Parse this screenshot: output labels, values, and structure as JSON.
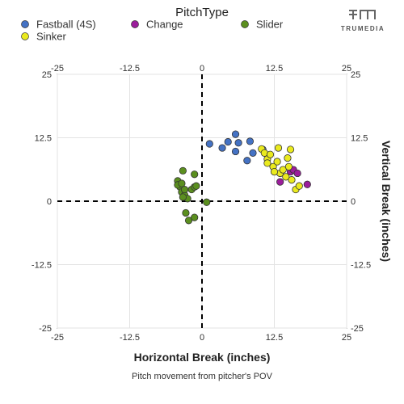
{
  "brand": {
    "name": "TRUMEDIA",
    "logo_icon": "tm-logo-icon"
  },
  "chart_data": {
    "type": "scatter",
    "legend": {
      "title": "PitchType",
      "placement": "top"
    },
    "xlabel": "Horizontal Break (inches)",
    "ylabel": "Vertical Break (inches)",
    "caption": "Pitch movement from pitcher's POV",
    "xlim": [
      -25,
      25
    ],
    "ylim": [
      -25,
      25
    ],
    "xticks": [
      -25,
      -12.5,
      0,
      12.5,
      25
    ],
    "yticks": [
      -25,
      -12.5,
      0,
      12.5,
      25
    ],
    "tick_labels": [
      "-25",
      "-12.5",
      "0",
      "12.5",
      "25"
    ],
    "grid": true,
    "zero_lines": "dashed",
    "series": [
      {
        "name": "Fastball (4S)",
        "color": "#4472c4",
        "points": [
          [
            1.3,
            11.3
          ],
          [
            3.5,
            10.5
          ],
          [
            4.5,
            11.7
          ],
          [
            5.8,
            13.2
          ],
          [
            6.3,
            11.5
          ],
          [
            5.8,
            9.8
          ],
          [
            8.3,
            11.8
          ],
          [
            7.8,
            8.0
          ],
          [
            8.8,
            9.5
          ],
          [
            10.5,
            10.2
          ]
        ]
      },
      {
        "name": "Change",
        "color": "#9b1d9b",
        "points": [
          [
            13.5,
            3.8
          ],
          [
            15.3,
            5.8
          ],
          [
            15.8,
            6.2
          ],
          [
            16.5,
            5.5
          ],
          [
            18.2,
            3.3
          ]
        ]
      },
      {
        "name": "Slider",
        "color": "#5b8f1f",
        "points": [
          [
            -4.2,
            4.0
          ],
          [
            -3.8,
            2.8
          ],
          [
            -3.3,
            6.0
          ],
          [
            -4.2,
            3.2
          ],
          [
            -3.5,
            1.8
          ],
          [
            -3.0,
            1.2
          ],
          [
            -2.5,
            0.5
          ],
          [
            -2.8,
            -2.3
          ],
          [
            -2.3,
            -3.8
          ],
          [
            -1.3,
            -3.2
          ],
          [
            -1.8,
            2.3
          ],
          [
            -1.3,
            2.8
          ],
          [
            -1.0,
            3.0
          ],
          [
            -1.3,
            5.3
          ],
          [
            -3.0,
            2.3
          ],
          [
            -3.5,
            3.5
          ],
          [
            0.8,
            -0.2
          ],
          [
            -3.3,
            0.8
          ]
        ]
      },
      {
        "name": "Sinker",
        "color": "#eaea1e",
        "points": [
          [
            10.3,
            10.3
          ],
          [
            10.8,
            9.5
          ],
          [
            11.3,
            8.3
          ],
          [
            11.8,
            9.2
          ],
          [
            11.3,
            7.5
          ],
          [
            12.3,
            6.8
          ],
          [
            13.0,
            7.8
          ],
          [
            13.2,
            10.5
          ],
          [
            13.5,
            5.5
          ],
          [
            14.0,
            6.2
          ],
          [
            14.5,
            4.8
          ],
          [
            14.8,
            8.5
          ],
          [
            15.0,
            6.8
          ],
          [
            15.3,
            10.2
          ],
          [
            15.5,
            4.2
          ],
          [
            16.2,
            2.3
          ],
          [
            16.8,
            3.0
          ],
          [
            12.5,
            5.8
          ]
        ]
      }
    ]
  }
}
